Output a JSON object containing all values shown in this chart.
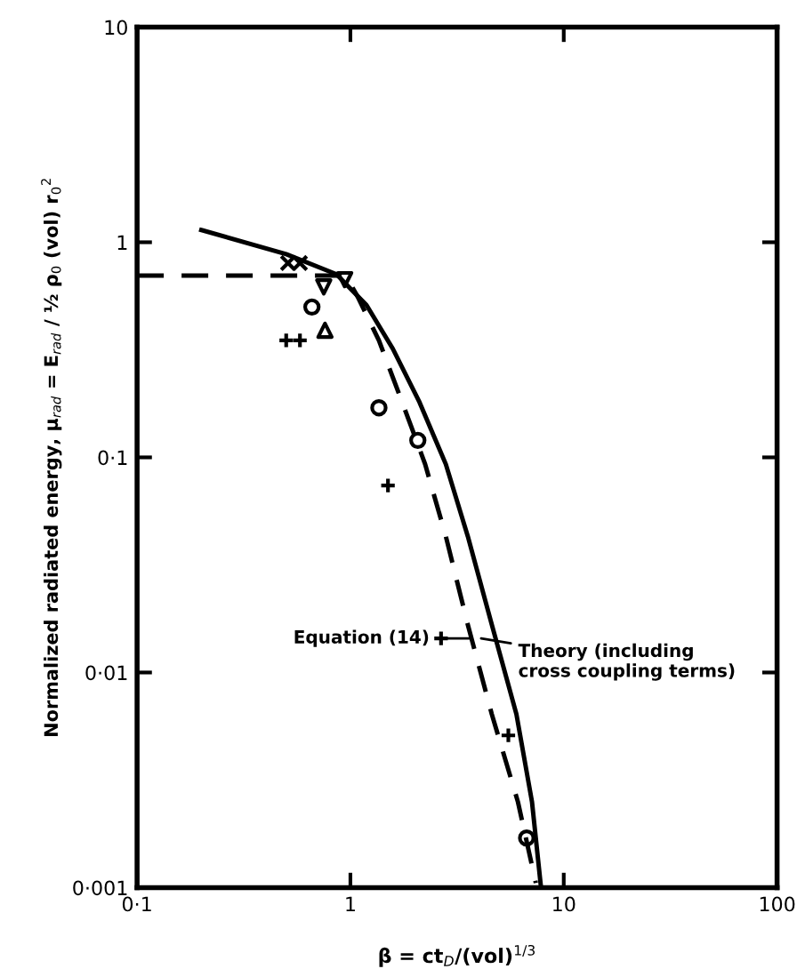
{
  "chart_data": {
    "type": "line",
    "xlabel": "β = ct$_{D}$/(vol)$^{1/3}$",
    "ylabel": "Normalized radiated energy, μ$_{rad}$ = E$_{rad}$ / ½ ρ$_{0}$ (vol) r$_{0}$$^{2}$",
    "log": "xy",
    "xlim": [
      0.1,
      100
    ],
    "ylim": [
      0.001,
      10
    ],
    "xticks": [
      {
        "value": 0.1,
        "label": "0·1"
      },
      1,
      10,
      100
    ],
    "yticks": [
      {
        "value": 0.001,
        "label": "0·001"
      },
      {
        "value": 0.01,
        "label": "0·01"
      },
      {
        "value": 0.1,
        "label": "0·1"
      },
      1,
      10
    ],
    "grid": false,
    "annotations": [
      {
        "text": "Equation (14)",
        "x": 3.6,
        "y": 0.0144
      },
      {
        "text": "Theory (including\ncross coupling terms)",
        "x": 4.1,
        "y": 0.0144
      }
    ],
    "series": [
      {
        "line_style": "solid",
        "marker": "none",
        "color": "#000000",
        "x": [
          0.2,
          0.5,
          0.86,
          1.19,
          1.58,
          2.11,
          2.8,
          3.55,
          4.6,
          6.0,
          7.1,
          7.8
        ],
        "values": [
          1.14,
          0.88,
          0.71,
          0.51,
          0.32,
          0.18,
          0.093,
          0.043,
          0.0167,
          0.0064,
          0.0025,
          0.00103
        ]
      },
      {
        "line_style": "dashed",
        "marker": "none",
        "color": "#000000",
        "x": [
          0.1,
          0.95,
          1.08,
          1.36,
          1.75,
          2.24,
          2.8,
          3.55,
          4.6,
          6.1,
          7.4
        ],
        "values": [
          0.7,
          0.7,
          0.56,
          0.35,
          0.18,
          0.093,
          0.043,
          0.0167,
          0.0064,
          0.0025,
          0.00105
        ]
      },
      {
        "type": "scatter",
        "marker": "cross",
        "color": "#000000",
        "x": [
          0.51,
          0.58
        ],
        "values": [
          0.8,
          0.8
        ]
      },
      {
        "type": "scatter",
        "marker": "triangle_down",
        "color": "#000000",
        "x": [
          0.75,
          0.94
        ],
        "values": [
          0.62,
          0.67
        ]
      },
      {
        "type": "scatter",
        "marker": "circle",
        "color": "#000000",
        "x": [
          0.66,
          1.36,
          2.07,
          6.7
        ],
        "values": [
          0.5,
          0.17,
          0.12,
          0.0017
        ]
      },
      {
        "type": "scatter",
        "marker": "plus",
        "color": "#000000",
        "x": [
          0.5,
          0.58,
          1.5,
          2.66,
          5.5
        ],
        "values": [
          0.35,
          0.35,
          0.074,
          0.0144,
          0.0051
        ]
      },
      {
        "type": "scatter",
        "marker": "triangle",
        "color": "#000000",
        "x": [
          0.76
        ],
        "values": [
          0.39
        ]
      }
    ]
  }
}
